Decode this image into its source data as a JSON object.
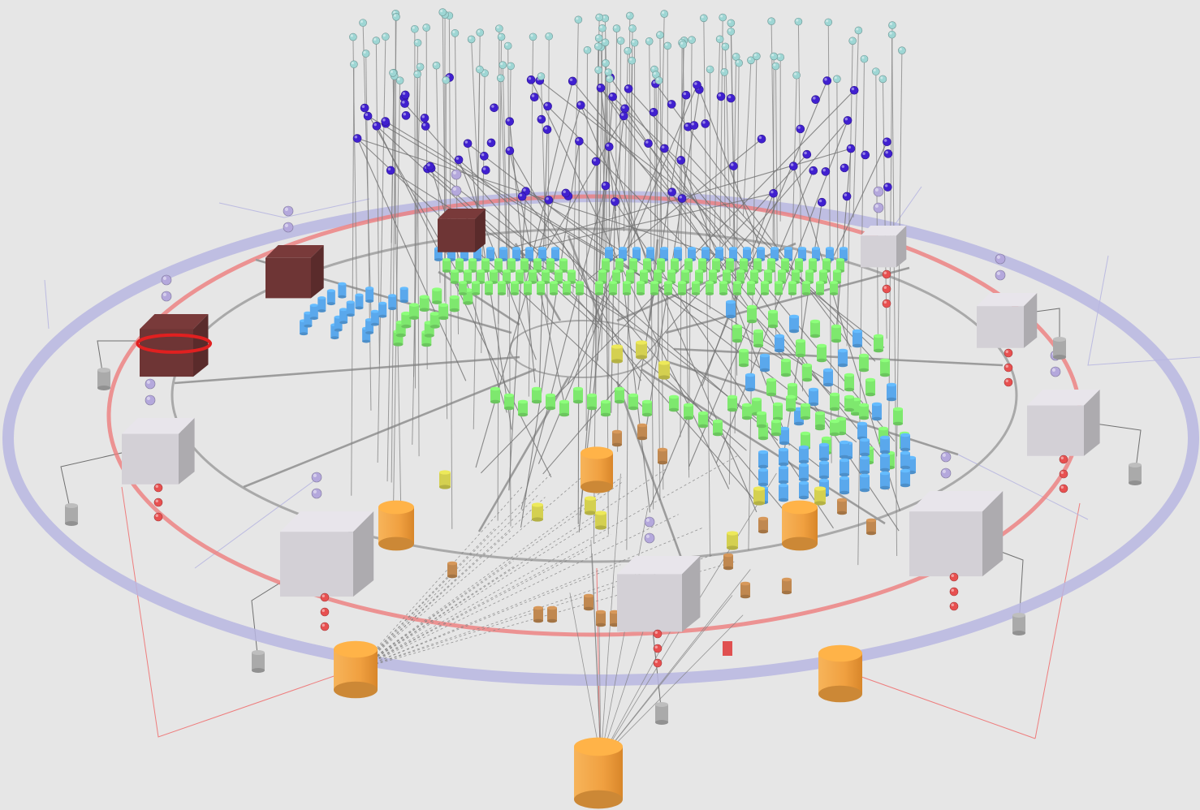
{
  "scene": {
    "kind": "3d-network-visualization",
    "background": "#e6e6e6",
    "text_labels": []
  },
  "palette": {
    "outer_ring": "#b7b6e0",
    "red_ring": "#ee7d7d",
    "inner_ring": "#a9a9a9",
    "spoke": "#9c9c9c",
    "drop_line": "#808080",
    "gray_cube": "#d3d0d6",
    "dark_cube": "#6e3535",
    "orange_cylinder": "#f0a040",
    "brown_cylinder": "#c08850",
    "yellow_cylinder": "#d4d050",
    "green_cylinder": "#7ee86e",
    "blue_cylinder": "#5aa8ec",
    "purple_sphere": "#4020d0",
    "cyan_sphere": "#9ed6d4",
    "lavender_sphere": "#b4a8dc",
    "red_sphere": "#e85050",
    "small_gray_cylinder": "#aaaaaa"
  },
  "node_types": [
    {
      "name": "gray-cube",
      "color": "gray_cube"
    },
    {
      "name": "dark-red-cube",
      "color": "dark_cube"
    },
    {
      "name": "orange-cylinder",
      "color": "orange_cylinder"
    },
    {
      "name": "brown-cylinder",
      "color": "brown_cylinder"
    },
    {
      "name": "yellow-cylinder",
      "color": "yellow_cylinder"
    },
    {
      "name": "green-cylinder",
      "color": "green_cylinder"
    },
    {
      "name": "blue-cylinder",
      "color": "blue_cylinder"
    },
    {
      "name": "purple-sphere",
      "color": "purple_sphere"
    },
    {
      "name": "cyan-sphere",
      "color": "cyan_sphere"
    },
    {
      "name": "lavender-sphere",
      "color": "lavender_sphere"
    },
    {
      "name": "red-sphere",
      "color": "red_sphere"
    },
    {
      "name": "small-gray-cylinder",
      "color": "small_gray_cylinder"
    }
  ]
}
